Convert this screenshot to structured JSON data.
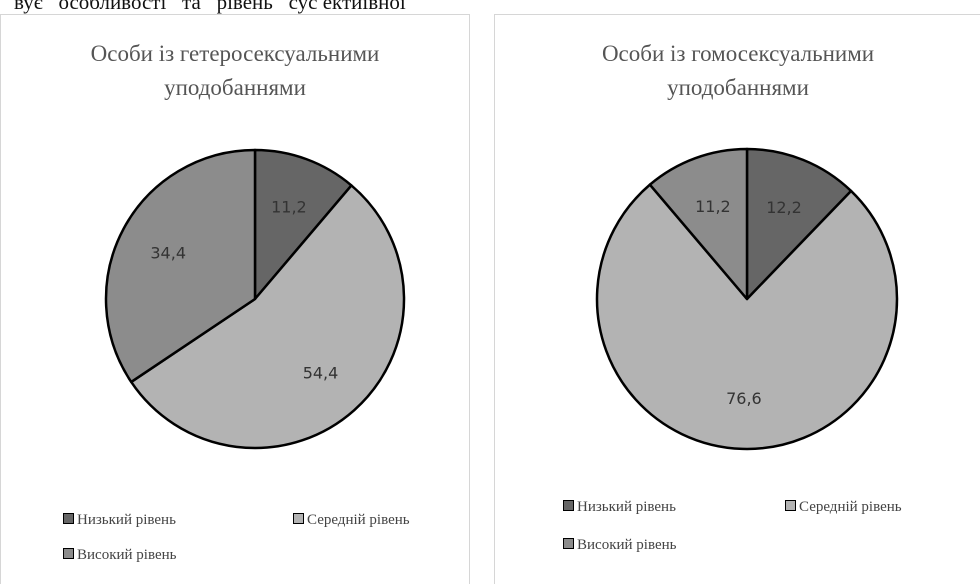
{
  "page": {
    "top_text": "вує   особливості   та   рівень   сус ектиівної"
  },
  "colors": {
    "low": "#666666",
    "medium": "#b3b3b3",
    "high": "#8c8c8c",
    "outline": "#000000",
    "label": "#333333"
  },
  "chart_data": [
    {
      "type": "pie",
      "title_lines": [
        "Особи із гетеросексуальними",
        "уподобаннями"
      ],
      "categories": [
        "Низький рівень",
        "Середній рівень",
        "Високий рівень"
      ],
      "values": [
        11.2,
        54.4,
        34.4
      ],
      "labels": [
        "11,2",
        "54,4",
        "34,4"
      ],
      "legend": "bottom"
    },
    {
      "type": "pie",
      "title_lines": [
        "Особи із гомосексуальними",
        "уподобаннями"
      ],
      "categories": [
        "Низький рівень",
        "Середній рівень",
        "Високий рівень"
      ],
      "values": [
        12.2,
        76.6,
        11.2
      ],
      "labels": [
        "12,2",
        "76,6",
        "11,2"
      ],
      "legend": "bottom"
    }
  ]
}
